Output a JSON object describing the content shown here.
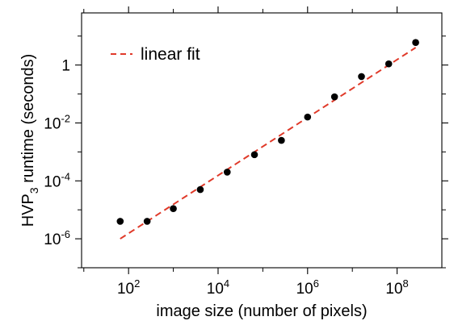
{
  "chart_data": {
    "type": "scatter",
    "title": "",
    "xlabel": "image size (number of pixels)",
    "ylabel": {
      "prefix": "HVP",
      "subscript": "3",
      "suffix": " runtime (seconds)"
    },
    "x_scale": "log",
    "y_scale": "log",
    "xlim_log10": [
      0.95,
      9.0
    ],
    "ylim_log10": [
      -7.0,
      1.8
    ],
    "x_ticks": [
      {
        "base": "10",
        "exp": "2",
        "log10": 2
      },
      {
        "base": "10",
        "exp": "4",
        "log10": 4
      },
      {
        "base": "10",
        "exp": "6",
        "log10": 6
      },
      {
        "base": "10",
        "exp": "8",
        "log10": 8
      }
    ],
    "y_ticks": [
      {
        "base": "10",
        "exp": "-6",
        "log10": -6
      },
      {
        "base": "10",
        "exp": "-4",
        "log10": -4
      },
      {
        "base": "10",
        "exp": "-2",
        "log10": -2
      },
      {
        "label": "1",
        "log10": 0
      }
    ],
    "x_minor_log10": [
      1,
      3,
      5,
      7
    ],
    "y_minor_log10": [
      -7,
      -5,
      -3,
      -1,
      1
    ],
    "grid": false,
    "series": [
      {
        "kind": "points",
        "color": "#000000",
        "points": [
          {
            "x": 65,
            "y": 4e-06
          },
          {
            "x": 260,
            "y": 4e-06
          },
          {
            "x": 1000,
            "y": 1.1e-05
          },
          {
            "x": 4000,
            "y": 5e-05
          },
          {
            "x": 16000,
            "y": 0.0002
          },
          {
            "x": 65000,
            "y": 0.0008
          },
          {
            "x": 260000,
            "y": 0.0025
          },
          {
            "x": 1000000,
            "y": 0.016
          },
          {
            "x": 4000000,
            "y": 0.08
          },
          {
            "x": 16000000,
            "y": 0.4
          },
          {
            "x": 65000000,
            "y": 1.1
          },
          {
            "x": 260000000,
            "y": 6.0
          }
        ]
      },
      {
        "kind": "line",
        "name": "linear fit",
        "color": "#e03a2a",
        "style": "dashed",
        "points": [
          {
            "x": 65,
            "y": 1e-06
          },
          {
            "x": 260000000,
            "y": 4.0
          }
        ]
      }
    ],
    "legend": {
      "placement": "top-left",
      "label": "linear fit"
    }
  }
}
